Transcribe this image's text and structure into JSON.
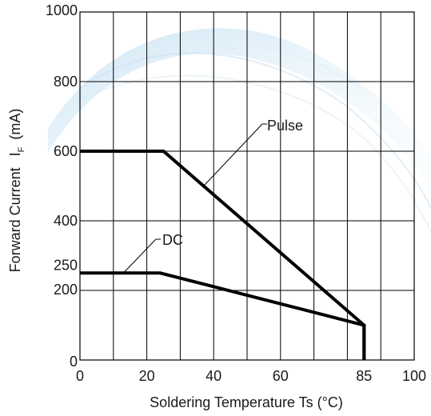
{
  "chart_data": {
    "type": "line",
    "xlabel": "Soldering Temperature Ts (°C)",
    "ylabel": "Forward Current",
    "ylabel_symbol": "I",
    "ylabel_subscript": "F",
    "ylabel_unit": "(mA)",
    "xlim": [
      0,
      100
    ],
    "ylim": [
      0,
      1000
    ],
    "x_tick_labels": [
      {
        "value": 0,
        "label": "0"
      },
      {
        "value": 20,
        "label": "20"
      },
      {
        "value": 40,
        "label": "40"
      },
      {
        "value": 60,
        "label": "60"
      },
      {
        "value": 85,
        "label": "85"
      },
      {
        "value": 100,
        "label": "100"
      }
    ],
    "y_tick_labels": [
      {
        "value": 0,
        "label": "0"
      },
      {
        "value": 200,
        "label": "200"
      },
      {
        "value": 250,
        "label": "250"
      },
      {
        "value": 400,
        "label": "400"
      },
      {
        "value": 600,
        "label": "600"
      },
      {
        "value": 800,
        "label": "800"
      },
      {
        "value": 1000,
        "label": "1000"
      }
    ],
    "x_gridlines": [
      0,
      10,
      20,
      30,
      40,
      50,
      60,
      70,
      80,
      90,
      100
    ],
    "y_gridlines": [
      0,
      200,
      400,
      600,
      800,
      1000
    ],
    "grid": true,
    "series": [
      {
        "name": "Pulse",
        "x": [
          0,
          25,
          85,
          85
        ],
        "y": [
          600,
          600,
          100,
          0
        ]
      },
      {
        "name": "DC",
        "x": [
          0,
          24,
          85,
          85
        ],
        "y": [
          250,
          250,
          100,
          0
        ]
      }
    ],
    "annotations": [
      {
        "text": "Pulse",
        "series": "Pulse",
        "point_x": 37,
        "point_y": 500
      },
      {
        "text": "DC",
        "series": "DC",
        "point_x": 13,
        "point_y": 250
      }
    ],
    "colors": {
      "line": "#000000",
      "grid": "#000000",
      "watermark": "#7fb9e0"
    }
  }
}
